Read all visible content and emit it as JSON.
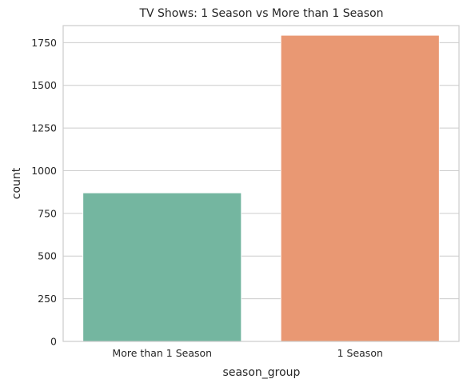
{
  "chart_data": {
    "type": "bar",
    "title": "TV Shows: 1 Season vs More than 1 Season",
    "xlabel": "season_group",
    "ylabel": "count",
    "categories": [
      "More than 1 Season",
      "1 Season"
    ],
    "values": [
      870,
      1793
    ],
    "colors": [
      "#74b6a0",
      "#e99873"
    ],
    "ylim": [
      0,
      1850
    ],
    "yticks": [
      0,
      250,
      500,
      750,
      1000,
      1250,
      1500,
      1750
    ],
    "grid": "horizontal",
    "legend": "none"
  }
}
